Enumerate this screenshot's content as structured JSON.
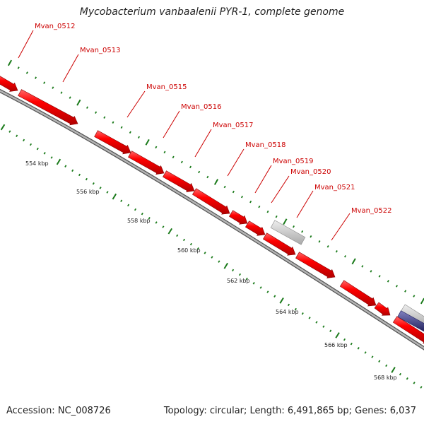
{
  "header": {
    "title": "Mycobacterium vanbaalenii PYR-1, complete genome"
  },
  "footer": {
    "accession": "Accession: NC_008726",
    "summary": "Topology: circular; Length: 6,491,865 bp; Genes: 6,037"
  },
  "colors": {
    "gene": "#ff0000",
    "gene_label": "#cc0000",
    "pseudo_gene": "#c8c8c8",
    "blue_feature": "#3a3a8c",
    "backbone": "#8c8c8c",
    "tick": "#1a7a1a",
    "kbp_label": "#222222"
  },
  "gene_labels": [
    {
      "name": "Mvan_0512"
    },
    {
      "name": "Mvan_0513"
    },
    {
      "name": "Mvan_0515"
    },
    {
      "name": "Mvan_0516"
    },
    {
      "name": "Mvan_0517"
    },
    {
      "name": "Mvan_0518"
    },
    {
      "name": "Mvan_0519"
    },
    {
      "name": "Mvan_0520"
    },
    {
      "name": "Mvan_0521"
    },
    {
      "name": "Mvan_0522"
    }
  ],
  "kbp_ticks": [
    "554 kbp",
    "556 kbp",
    "558 kbp",
    "560 kbp",
    "562 kbp",
    "564 kbp",
    "566 kbp",
    "568 kbp"
  ]
}
